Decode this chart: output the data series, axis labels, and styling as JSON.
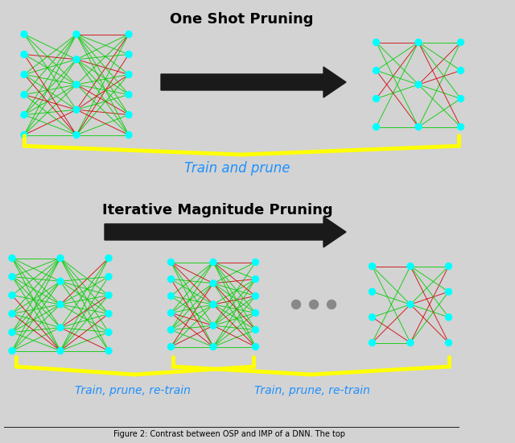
{
  "bg_color": "#d3d3d3",
  "title_osp": "One Shot Pruning",
  "title_imp": "Iterative Magnitude Pruning",
  "label_train_prune": "Train and prune",
  "label_tpr1": "Train, prune, re-train",
  "label_tpr2": "Train, prune, re-train",
  "label_color": "#1e90ff",
  "arrow_color": "#1a1a1a",
  "brace_color": "#ffff00",
  "node_color": "#00ffff",
  "green_line": "#00cc00",
  "red_line": "#cc0000",
  "dots_color": "#888888"
}
